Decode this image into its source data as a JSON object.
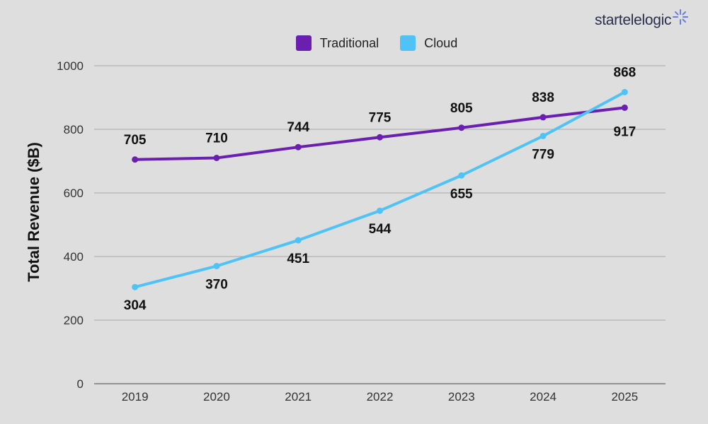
{
  "brand": {
    "logo_text": "startelelogic",
    "logo_icon": "spark-icon"
  },
  "chart_data": {
    "type": "line",
    "title": "",
    "xlabel": "",
    "ylabel": "Total Revenue ($B)",
    "categories": [
      "2019",
      "2020",
      "2021",
      "2022",
      "2023",
      "2024",
      "2025"
    ],
    "ylim": [
      0,
      1000
    ],
    "yticks": [
      0,
      200,
      400,
      600,
      800,
      1000
    ],
    "grid": true,
    "legend_position": "top-center",
    "series": [
      {
        "name": "Traditional",
        "color": "#6a1fb0",
        "values": [
          705,
          710,
          744,
          775,
          805,
          838,
          868
        ],
        "labels": [
          "705",
          "710",
          "744",
          "775",
          "805",
          "838",
          "868"
        ]
      },
      {
        "name": "Cloud",
        "color": "#4fc3f7",
        "values": [
          304,
          370,
          451,
          544,
          655,
          779,
          917
        ],
        "labels": [
          "304",
          "370",
          "451",
          "544",
          "655",
          "779",
          "917"
        ]
      }
    ]
  }
}
